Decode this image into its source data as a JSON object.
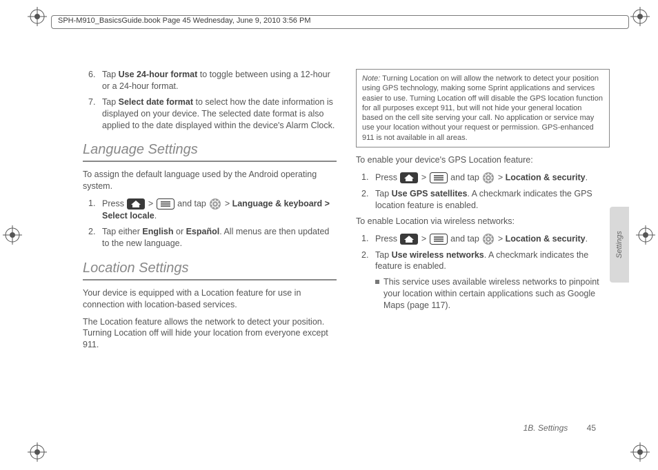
{
  "header": "SPH-M910_BasicsGuide.book  Page 45  Wednesday, June 9, 2010  3:56 PM",
  "colors": {
    "text": "#555555",
    "heading": "#888888",
    "rule": "#888888",
    "tab_bg": "#d9d9d9",
    "reg_mark": "#555555"
  },
  "left": {
    "steps_top": [
      {
        "n": "6.",
        "pre": "Tap ",
        "b1": "Use 24-hour format",
        "post": " to toggle between using a 12-hour or a 24-hour format."
      },
      {
        "n": "7.",
        "pre": "Tap ",
        "b1": "Select date format",
        "post": " to select how the date information is displayed on your device. The selected date format is also applied to the date displayed within the device's Alarm Clock."
      }
    ],
    "lang_heading": "Language Settings",
    "lang_intro": "To assign the default language used by the Android operating system.",
    "lang_steps": [
      {
        "n": "1.",
        "text_parts": [
          "Press ",
          "HOME",
          " > ",
          "MENU",
          " and tap ",
          "GEAR",
          " > ",
          "Language & keyboard > Select locale",
          "."
        ]
      },
      {
        "n": "2.",
        "pre": "Tap either ",
        "b1": "English",
        "mid": " or ",
        "b2": "Español",
        "post": ". All menus are then updated to the new language."
      }
    ],
    "loc_heading": "Location Settings",
    "loc_p1": "Your device is equipped with a Location feature for use in connection with location-based services.",
    "loc_p2": "The Location feature allows the network to detect your position. Turning Location off will hide your location from everyone except 911."
  },
  "right": {
    "note_label": "Note:",
    "note_text": "Turning Location on will allow the network to detect your position using GPS technology, making some Sprint applications and services easier to use. Turning Location off will disable the GPS location function for all purposes except 911, but will not hide your general location based on the cell site serving your call. No application or service may use your location without your request or permission. GPS-enhanced 911 is not available in all areas.",
    "gps_intro": "To enable your device's GPS Location feature:",
    "gps_steps": [
      {
        "n": "1.",
        "text_parts": [
          "Press ",
          "HOME",
          " > ",
          "MENU",
          " and tap ",
          "GEAR",
          " > ",
          "Location & security",
          "."
        ]
      },
      {
        "n": "2.",
        "pre": "Tap ",
        "b1": "Use GPS satellites",
        "post": ". A checkmark indicates the GPS location feature is enabled."
      }
    ],
    "wifi_intro": "To enable Location via wireless networks:",
    "wifi_steps": [
      {
        "n": "1.",
        "text_parts": [
          "Press ",
          "HOME",
          " > ",
          "MENU",
          " and tap ",
          "GEAR",
          " > ",
          "Location & security",
          "."
        ]
      },
      {
        "n": "2.",
        "pre": "Tap ",
        "b1": "Use wireless networks",
        "post": ". A checkmark indicates the feature is enabled."
      }
    ],
    "wifi_sub": "This service uses available wireless networks to pinpoint your location within certain applications such as Google Maps (page 117)."
  },
  "footer_text": "1B. Settings",
  "page_num": "45",
  "tab_label": "Settings",
  "icons": {
    "home": {
      "w": 26,
      "h": 16,
      "bg": "#3a3a3a",
      "fg": "#ffffff"
    },
    "menu": {
      "w": 26,
      "h": 16,
      "bg": "#ffffff",
      "stroke": "#3a3a3a"
    },
    "gear": {
      "w": 18,
      "h": 18,
      "bg": "#9a9a9a",
      "fg": "#ffffff"
    }
  }
}
